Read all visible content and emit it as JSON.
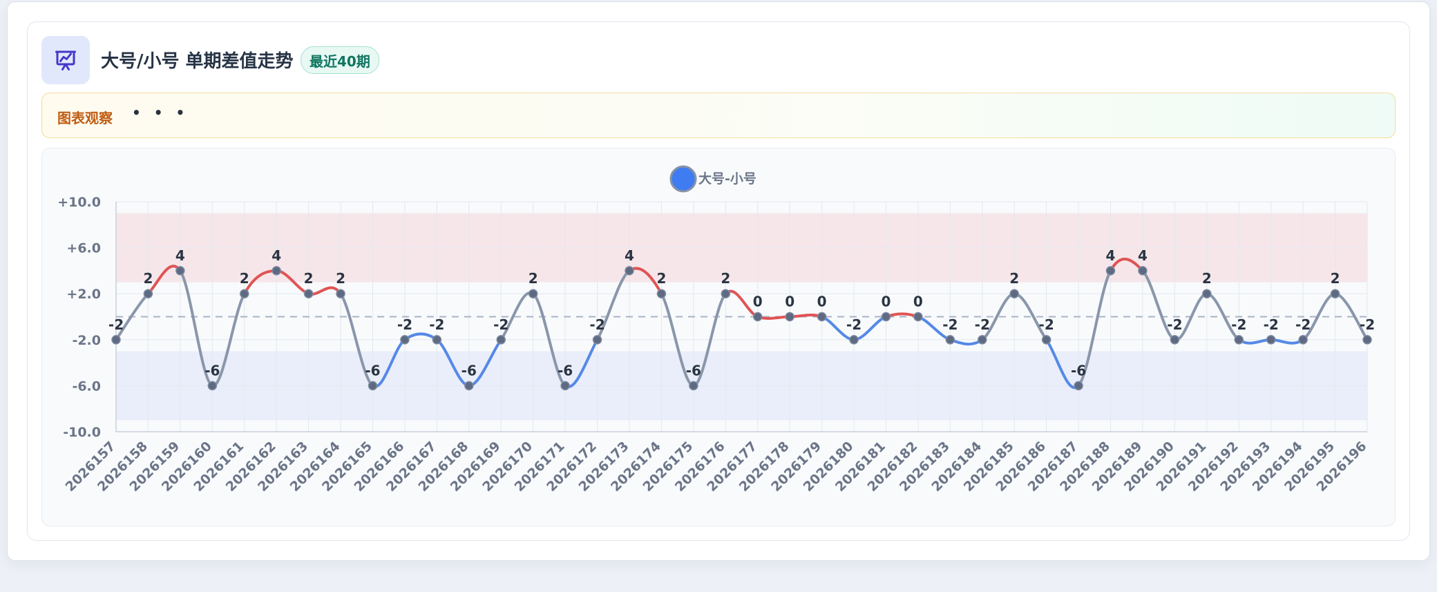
{
  "header": {
    "title": "大号/小号 单期差值走势",
    "badge": "最近40期",
    "icon": "presentation-chart-icon"
  },
  "observation": {
    "label": "图表观察",
    "dots": "• • •"
  },
  "colors": {
    "neutral": "#8a96aa",
    "positive": "#e05454",
    "negative": "#5589e6",
    "legend_dot": "#3f7cf2",
    "high_band": "#f6e6ea",
    "low_band": "#e9eefa"
  },
  "chart_data": {
    "type": "line",
    "title": "",
    "xlabel": "",
    "ylabel": "",
    "legend": {
      "position": "top-center"
    },
    "series": [
      {
        "name": "大号-小号",
        "values": [
          -2,
          2,
          4,
          -6,
          2,
          4,
          2,
          2,
          -6,
          -2,
          -2,
          -6,
          -2,
          2,
          -6,
          -2,
          4,
          2,
          -6,
          2,
          0,
          0,
          0,
          -2,
          0,
          0,
          -2,
          -2,
          2,
          -2,
          -6,
          4,
          4,
          -2,
          2,
          -2,
          -2,
          -2,
          2,
          -2
        ]
      }
    ],
    "categories": [
      "2026157",
      "2026158",
      "2026159",
      "2026160",
      "2026161",
      "2026162",
      "2026163",
      "2026164",
      "2026165",
      "2026166",
      "2026167",
      "2026168",
      "2026169",
      "2026170",
      "2026171",
      "2026172",
      "2026173",
      "2026174",
      "2026175",
      "2026176",
      "2026177",
      "2026178",
      "2026179",
      "2026180",
      "2026181",
      "2026182",
      "2026183",
      "2026184",
      "2026185",
      "2026186",
      "2026187",
      "2026188",
      "2026189",
      "2026190",
      "2026191",
      "2026192",
      "2026193",
      "2026194",
      "2026195",
      "2026196"
    ],
    "ylim": [
      -10,
      10
    ],
    "yticks": [
      10,
      6,
      2,
      -2,
      -6,
      -10
    ],
    "ytick_labels": [
      "+10.0",
      "+6.0",
      "+2.0",
      "-2.0",
      "-6.0",
      "-10.0"
    ],
    "bands": [
      {
        "from": 3,
        "to": 9,
        "kind": "high"
      },
      {
        "from": -9,
        "to": -3,
        "kind": "low"
      }
    ],
    "reference_line": 0,
    "grid": true
  }
}
